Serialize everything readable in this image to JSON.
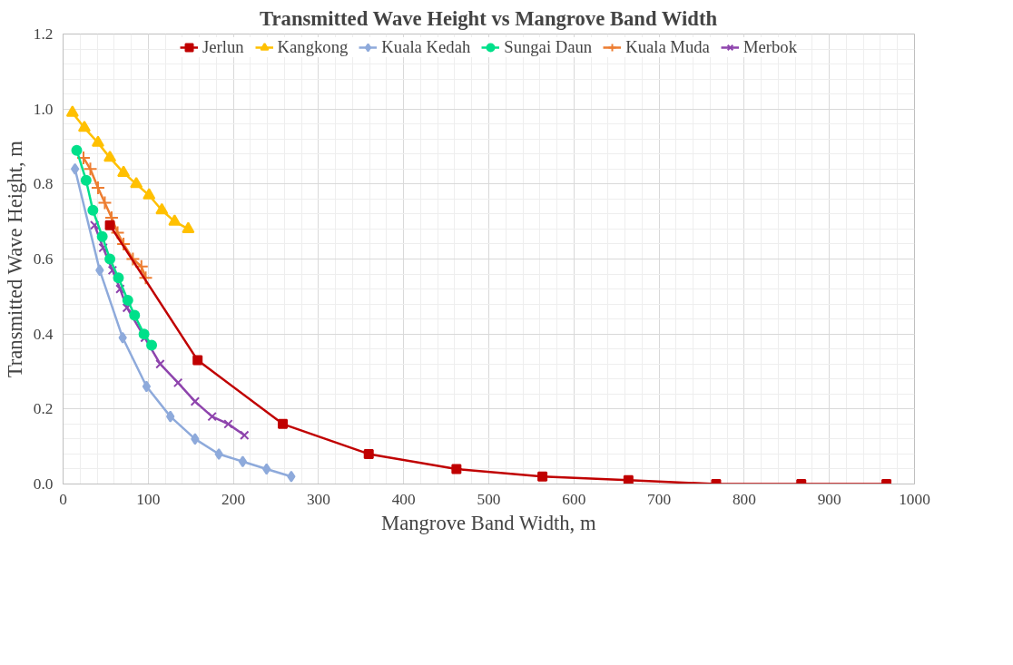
{
  "chart_data": {
    "type": "line",
    "title": "Transmitted Wave Height vs Mangrove Band Width",
    "xlabel": "Mangrove Band Width, m",
    "ylabel": "Transmitted Wave Height, m",
    "xlim": [
      0,
      1000
    ],
    "xticks": [
      0,
      100,
      200,
      300,
      400,
      500,
      600,
      700,
      800,
      900,
      1000
    ],
    "ylim": [
      0,
      1.2
    ],
    "yticks": [
      {
        "value": 0,
        "label": "0.0"
      },
      {
        "value": 0.2,
        "label": "0.2"
      },
      {
        "value": 0.4,
        "label": "0.4"
      },
      {
        "value": 0.6,
        "label": "0.6"
      },
      {
        "value": 0.8,
        "label": "0.8"
      },
      {
        "value": 1.0,
        "label": "1.0"
      },
      {
        "value": 1.2,
        "label": "1.2"
      }
    ],
    "grid": true,
    "legend": "top",
    "line_style": "solid",
    "series": [
      {
        "name": "Jerlun",
        "color": "#c00000",
        "marker": "square",
        "x": [
          55,
          158,
          258,
          359,
          462,
          563,
          664,
          767,
          867,
          967
        ],
        "values": [
          0.69,
          0.33,
          0.16,
          0.08,
          0.04,
          0.02,
          0.01,
          0,
          0,
          0
        ]
      },
      {
        "name": "Kangkong",
        "color": "#ffc000",
        "marker": "triangle",
        "x": [
          11,
          25,
          41,
          55,
          71,
          86,
          101,
          116,
          131,
          147
        ],
        "values": [
          0.99,
          0.95,
          0.91,
          0.87,
          0.83,
          0.8,
          0.77,
          0.73,
          0.7,
          0.68
        ]
      },
      {
        "name": "Kuala Kedah",
        "color": "#8eaadb",
        "marker": "diamond",
        "x": [
          14,
          43,
          70,
          98,
          126,
          155,
          183,
          211,
          239,
          268
        ],
        "values": [
          0.84,
          0.57,
          0.39,
          0.26,
          0.18,
          0.12,
          0.08,
          0.06,
          0.04,
          0.02
        ]
      },
      {
        "name": "Sungai Daun",
        "color": "#00e08a",
        "marker": "circle",
        "x": [
          16,
          27,
          35,
          46,
          55,
          65,
          76,
          84,
          95,
          104
        ],
        "values": [
          0.89,
          0.81,
          0.73,
          0.66,
          0.6,
          0.55,
          0.49,
          0.45,
          0.4,
          0.37
        ]
      },
      {
        "name": "Kuala Muda",
        "color": "#ed7d31",
        "marker": "cross",
        "x": [
          24,
          32,
          41,
          49,
          57,
          64,
          71,
          82,
          92,
          97
        ],
        "values": [
          0.87,
          0.84,
          0.79,
          0.75,
          0.71,
          0.67,
          0.64,
          0.6,
          0.58,
          0.55
        ]
      },
      {
        "name": "Merbok",
        "color": "#8e44ad",
        "marker": "x",
        "x": [
          37,
          47,
          58,
          67,
          75,
          96,
          114,
          135,
          155,
          175,
          194,
          213
        ],
        "values": [
          0.69,
          0.63,
          0.57,
          0.52,
          0.47,
          0.39,
          0.32,
          0.27,
          0.22,
          0.18,
          0.16,
          0.13
        ]
      }
    ]
  }
}
